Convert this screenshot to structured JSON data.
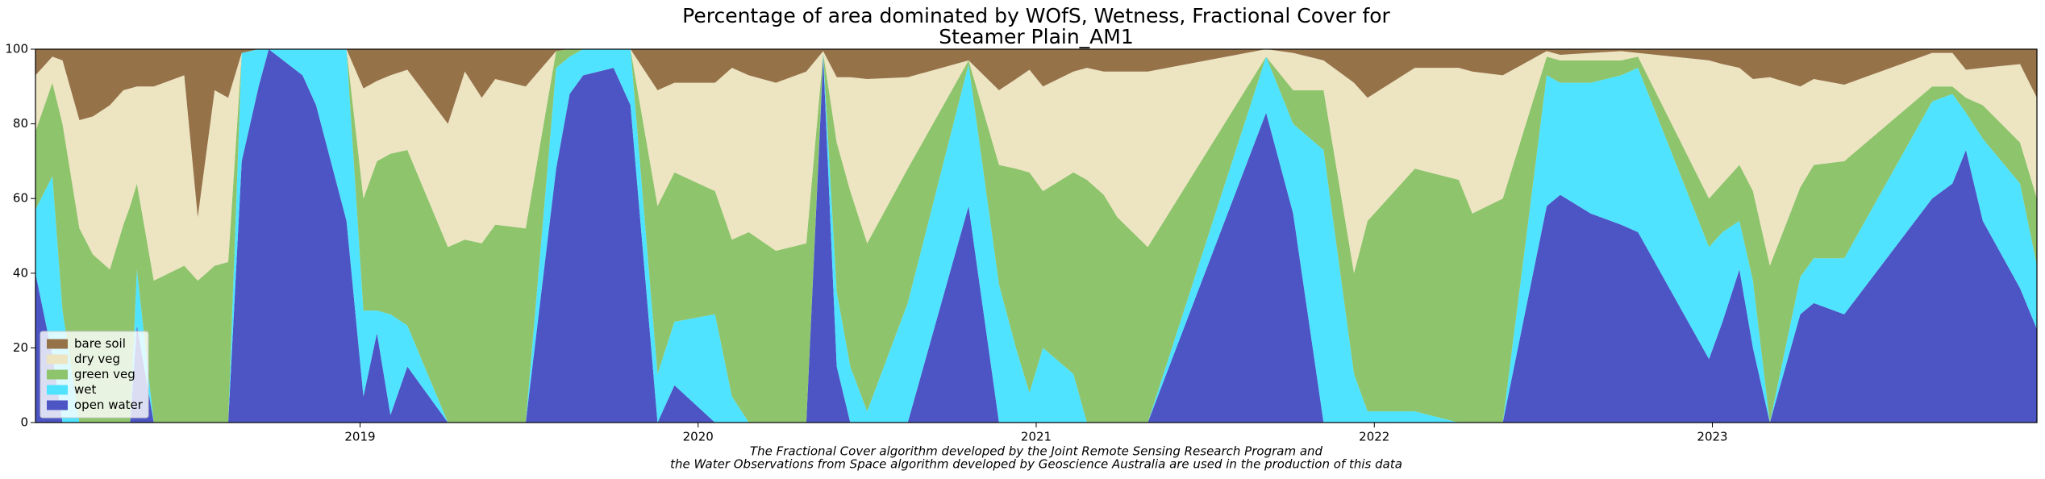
{
  "chart_data": {
    "type": "stacked_area",
    "title": [
      "Percentage of area dominated by WOfS, Wetness, Fractional Cover for",
      "Steamer Plain_AM1"
    ],
    "annotation": [
      "The Fractional Cover algorithm developed by the Joint Remote Sensing Research Program and",
      "the Water Observations from Space algorithm developed by Geoscience Australia are used in the production of this data"
    ],
    "x": [
      2018.04,
      2018.09,
      2018.12,
      2018.17,
      2018.21,
      2018.26,
      2018.3,
      2018.32,
      2018.34,
      2018.39,
      2018.48,
      2018.52,
      2018.57,
      2018.61,
      2018.65,
      2018.7,
      2018.73,
      2018.83,
      2018.87,
      2018.96,
      2019.01,
      2019.05,
      2019.09,
      2019.14,
      2019.26,
      2019.31,
      2019.36,
      2019.4,
      2019.49,
      2019.58,
      2019.62,
      2019.66,
      2019.75,
      2019.8,
      2019.88,
      2019.93,
      2020.05,
      2020.1,
      2020.15,
      2020.23,
      2020.32,
      2020.37,
      2020.41,
      2020.45,
      2020.5,
      2020.62,
      2020.8,
      2020.89,
      2020.94,
      2020.98,
      2021.02,
      2021.11,
      2021.15,
      2021.2,
      2021.24,
      2021.33,
      2021.68,
      2021.76,
      2021.85,
      2021.94,
      2021.98,
      2022.12,
      2022.25,
      2022.29,
      2022.38,
      2022.51,
      2022.55,
      2022.64,
      2022.73,
      2022.78,
      2022.99,
      2023.03,
      2023.08,
      2023.12,
      2023.17,
      2023.26,
      2023.3,
      2023.39,
      2023.65,
      2023.71,
      2023.75,
      2023.8,
      2023.91,
      2023.96
    ],
    "series": [
      {
        "name": "bare soil",
        "color": "#967249",
        "values": [
          7,
          2,
          3,
          19,
          18,
          15,
          11,
          10.5,
          10,
          10,
          7,
          45,
          11,
          13,
          1,
          0,
          0,
          0,
          0,
          0,
          10.5,
          8.5,
          7,
          5.5,
          20,
          6,
          13,
          8,
          10,
          0.5,
          0,
          0,
          0,
          0,
          11,
          9,
          9,
          5,
          7,
          9,
          6,
          0.5,
          7.5,
          7.5,
          8,
          7.5,
          3,
          11,
          8,
          5.5,
          10,
          6,
          5,
          6,
          6,
          6,
          0,
          1,
          3,
          9,
          13,
          5,
          5,
          6,
          7,
          0.5,
          1.5,
          1,
          0.5,
          1,
          3,
          4,
          5,
          8,
          7.5,
          10,
          8,
          9.5,
          1,
          1,
          5.5,
          5,
          4,
          13
        ]
      },
      {
        "name": "dry veg",
        "color": "#ede4c1",
        "values": [
          15,
          7,
          17,
          29,
          37,
          44,
          36,
          31.5,
          26,
          52,
          51,
          17,
          47,
          44,
          0,
          0,
          0,
          0,
          0,
          0,
          29.5,
          21.5,
          21,
          21.5,
          33,
          45,
          39,
          39,
          38,
          0,
          0,
          0,
          0,
          0,
          31,
          24,
          29,
          46,
          42,
          45,
          46,
          0.5,
          17.5,
          30.5,
          44,
          24.5,
          0,
          20,
          24,
          27.5,
          28,
          27,
          30,
          33,
          39,
          47,
          2,
          10,
          8,
          51,
          33,
          27,
          30,
          38,
          33,
          1.5,
          1.5,
          2,
          2.5,
          1,
          37,
          32,
          26,
          30,
          50.5,
          27,
          23,
          20.5,
          9,
          9,
          7.5,
          10,
          21,
          27
        ]
      },
      {
        "name": "green veg",
        "color": "#8ec46c",
        "values": [
          21,
          25,
          50,
          52,
          45,
          41,
          53,
          58,
          23,
          38,
          42,
          38,
          42,
          43,
          0,
          0,
          0,
          0,
          0,
          0,
          30,
          40,
          43,
          47,
          47,
          49,
          48,
          53,
          52,
          4.5,
          2,
          0,
          0,
          0,
          45,
          40,
          33,
          42,
          51,
          46,
          48,
          0,
          40,
          47,
          45,
          36,
          1,
          32,
          48,
          59,
          42,
          54,
          65,
          61,
          55,
          47,
          0,
          9,
          16,
          27,
          51,
          65,
          65,
          56,
          60,
          5,
          6,
          6,
          4,
          3,
          13,
          13,
          15,
          24,
          42,
          24,
          25,
          26,
          4,
          2,
          4,
          9,
          11,
          18
        ]
      },
      {
        "name": "wet",
        "color": "#4fe3ff",
        "values": [
          17,
          48,
          30,
          0,
          0,
          0,
          0,
          0,
          15,
          0,
          0,
          0,
          0,
          0,
          29,
          10,
          0,
          7,
          15,
          46,
          23,
          6,
          27,
          11,
          0,
          0,
          0,
          0,
          0,
          27,
          10,
          7,
          5,
          15,
          13,
          17,
          29,
          7,
          0,
          0,
          0,
          1,
          20,
          15,
          3,
          32,
          38,
          37,
          20,
          8,
          20,
          13,
          0,
          0,
          0,
          0,
          15,
          24,
          73,
          13,
          3,
          3,
          0,
          0,
          0,
          35,
          30,
          35,
          40,
          44,
          30,
          24,
          13,
          18,
          0,
          10,
          12,
          15,
          26,
          24,
          10,
          22,
          28,
          17
        ]
      },
      {
        "name": "open water",
        "color": "#4d55c4",
        "values": [
          40,
          18,
          0,
          0,
          0,
          0,
          0,
          0,
          26,
          0,
          0,
          0,
          0,
          0,
          70,
          90,
          100,
          93,
          85,
          54,
          7,
          24,
          2,
          15,
          0,
          0,
          0,
          0,
          0,
          68,
          88,
          93,
          95,
          85,
          0,
          10,
          0,
          0,
          0,
          0,
          0,
          98,
          15,
          0,
          0,
          0,
          58,
          0,
          0,
          0,
          0,
          0,
          0,
          0,
          0,
          0,
          83,
          56,
          0,
          0,
          0,
          0,
          0,
          0,
          0,
          58,
          61,
          56,
          53,
          51,
          17,
          27,
          41,
          20,
          0,
          29,
          32,
          29,
          60,
          64,
          73,
          54,
          36,
          25
        ]
      }
    ],
    "xlim": [
      2018.04,
      2023.96
    ],
    "xticks": [
      2019,
      2020,
      2021,
      2022,
      2023
    ],
    "ylim": [
      0,
      100
    ],
    "yticks": [
      0,
      20,
      40,
      60,
      80,
      100
    ],
    "legend": "lower left"
  }
}
